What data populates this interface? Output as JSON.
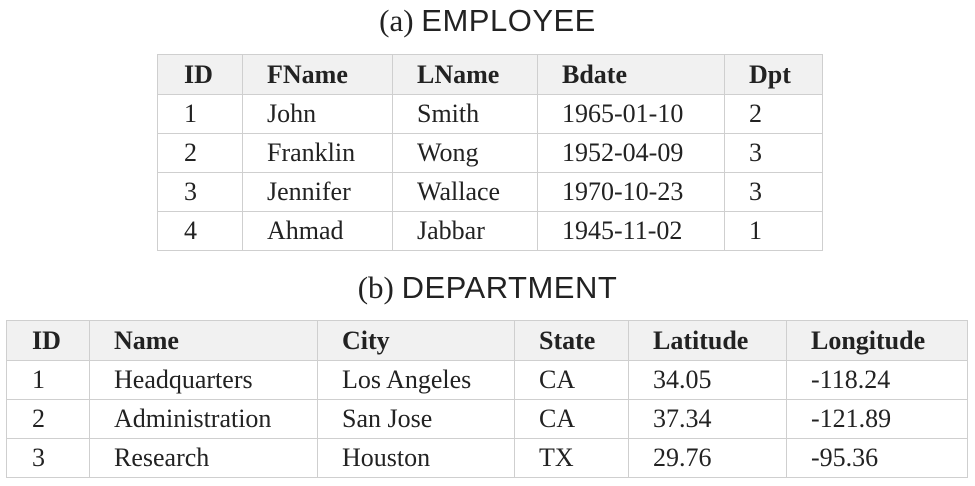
{
  "employee": {
    "caption_tag": "(a)",
    "caption_name": "EMPLOYEE",
    "headers": [
      "ID",
      "FName",
      "LName",
      "Bdate",
      "Dpt"
    ],
    "rows": [
      [
        "1",
        "John",
        "Smith",
        "1965-01-10",
        "2"
      ],
      [
        "2",
        "Franklin",
        "Wong",
        "1952-04-09",
        "3"
      ],
      [
        "3",
        "Jennifer",
        "Wallace",
        "1970-10-23",
        "3"
      ],
      [
        "4",
        "Ahmad",
        "Jabbar",
        "1945-11-02",
        "1"
      ]
    ]
  },
  "department": {
    "caption_tag": "(b)",
    "caption_name": "DEPARTMENT",
    "headers": [
      "ID",
      "Name",
      "City",
      "State",
      "Latitude",
      "Longitude"
    ],
    "rows": [
      [
        "1",
        "Headquarters",
        "Los Angeles",
        "CA",
        "34.05",
        "-118.24"
      ],
      [
        "2",
        "Administration",
        "San Jose",
        "CA",
        "37.34",
        "-121.89"
      ],
      [
        "3",
        "Research",
        "Houston",
        "TX",
        "29.76",
        "-95.36"
      ]
    ]
  },
  "chart_data": [
    {
      "type": "table",
      "title": "EMPLOYEE",
      "columns": [
        "ID",
        "FName",
        "LName",
        "Bdate",
        "Dpt"
      ],
      "rows": [
        [
          "1",
          "John",
          "Smith",
          "1965-01-10",
          "2"
        ],
        [
          "2",
          "Franklin",
          "Wong",
          "1952-04-09",
          "3"
        ],
        [
          "3",
          "Jennifer",
          "Wallace",
          "1970-10-23",
          "3"
        ],
        [
          "4",
          "Ahmad",
          "Jabbar",
          "1945-11-02",
          "1"
        ]
      ]
    },
    {
      "type": "table",
      "title": "DEPARTMENT",
      "columns": [
        "ID",
        "Name",
        "City",
        "State",
        "Latitude",
        "Longitude"
      ],
      "rows": [
        [
          "1",
          "Headquarters",
          "Los Angeles",
          "CA",
          "34.05",
          "-118.24"
        ],
        [
          "2",
          "Administration",
          "San Jose",
          "CA",
          "37.34",
          "-121.89"
        ],
        [
          "3",
          "Research",
          "Houston",
          "TX",
          "29.76",
          "-95.36"
        ]
      ]
    }
  ]
}
